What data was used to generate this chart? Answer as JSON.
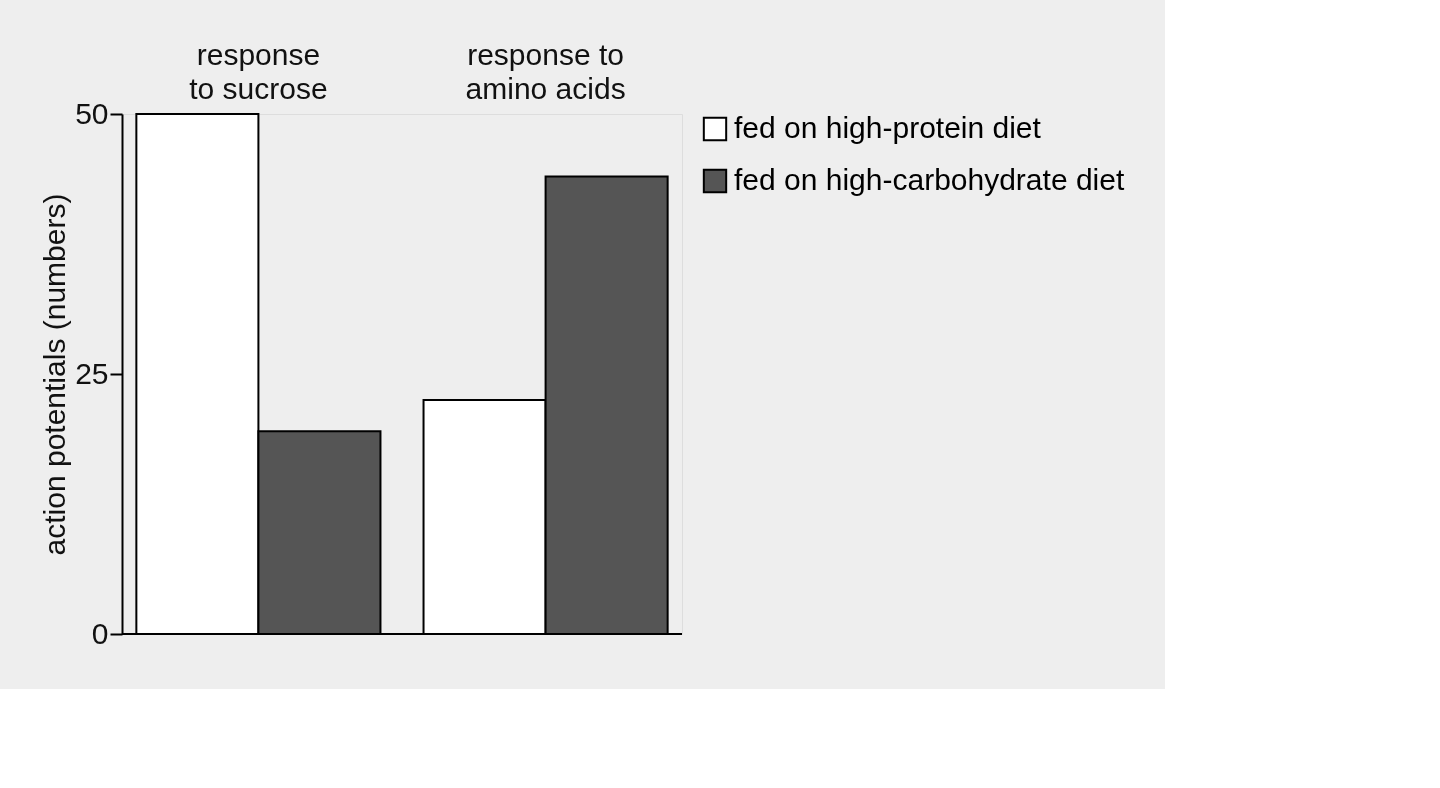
{
  "chart_data": {
    "type": "bar",
    "ylabel": "action potentials (numbers)",
    "categories": [
      "response to sucrose",
      "response to amino acids"
    ],
    "series": [
      {
        "name": "fed on high-protein diet",
        "color": "#ffffff",
        "values": [
          50,
          22.5
        ]
      },
      {
        "name": "fed on high-carbohydrate diet",
        "color": "#555555",
        "values": [
          19.5,
          44
        ]
      }
    ],
    "ylim": [
      0,
      50
    ],
    "yticks": [
      0,
      25,
      50
    ],
    "grid": false,
    "legend": "right"
  }
}
